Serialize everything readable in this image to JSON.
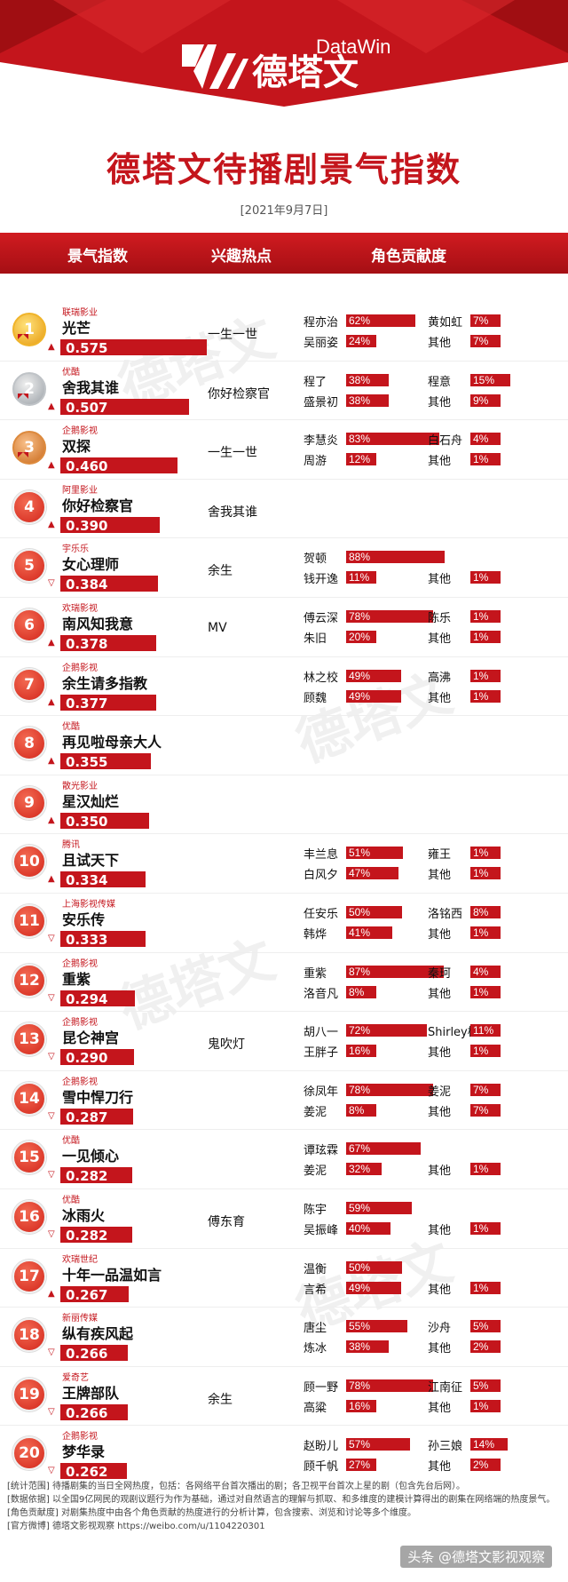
{
  "header": {
    "logo_cn": "德塔文",
    "logo_en": "DataWin",
    "title": "德塔文待播剧景气指数",
    "date": "[2021年9月7日]"
  },
  "columns": {
    "index": "景气指数",
    "hot": "兴趣热点",
    "roles": "角色贡献度"
  },
  "rows": [
    {
      "rank": "1",
      "company": "联瑞影业",
      "title": "光芒",
      "score": "0.575",
      "trend": "up",
      "hot": "一生一世",
      "r1": "程亦治",
      "p1": "62%",
      "r2": "吴丽姿",
      "p2": "24%",
      "r3": "黄如虹",
      "p3": "7%",
      "r4": "其他",
      "p4": "7%"
    },
    {
      "rank": "2",
      "company": "优酷",
      "title": "舍我其谁",
      "score": "0.507",
      "trend": "up",
      "hot": "你好检察官",
      "r1": "程了",
      "p1": "38%",
      "r2": "盛景初",
      "p2": "38%",
      "r3": "程意",
      "p3": "15%",
      "r4": "其他",
      "p4": "9%"
    },
    {
      "rank": "3",
      "company": "企鹅影视",
      "title": "双探",
      "score": "0.460",
      "trend": "up",
      "hot": "一生一世",
      "r1": "李慧炎",
      "p1": "83%",
      "r2": "周游",
      "p2": "12%",
      "r3": "白石舟",
      "p3": "4%",
      "r4": "其他",
      "p4": "1%"
    },
    {
      "rank": "4",
      "company": "阿里影业",
      "title": "你好检察官",
      "score": "0.390",
      "trend": "up",
      "hot": "舍我其谁",
      "r1": "",
      "p1": "",
      "r2": "",
      "p2": "",
      "r3": "",
      "p3": "",
      "r4": "",
      "p4": ""
    },
    {
      "rank": "5",
      "company": "宇乐乐",
      "title": "女心理师",
      "score": "0.384",
      "trend": "down",
      "hot": "余生",
      "r1": "贺顿",
      "p1": "88%",
      "r2": "钱开逸",
      "p2": "11%",
      "r3": "",
      "p3": "",
      "r4": "其他",
      "p4": "1%"
    },
    {
      "rank": "6",
      "company": "欢瑞影视",
      "title": "南风知我意",
      "score": "0.378",
      "trend": "up",
      "hot": "MV",
      "r1": "傅云深",
      "p1": "78%",
      "r2": "朱旧",
      "p2": "20%",
      "r3": "陈乐",
      "p3": "1%",
      "r4": "其他",
      "p4": "1%"
    },
    {
      "rank": "7",
      "company": "企鹅影视",
      "title": "余生请多指教",
      "score": "0.377",
      "trend": "up",
      "hot": "",
      "r1": "林之校",
      "p1": "49%",
      "r2": "顾魏",
      "p2": "49%",
      "r3": "高沸",
      "p3": "1%",
      "r4": "其他",
      "p4": "1%"
    },
    {
      "rank": "8",
      "company": "优酷",
      "title": "再见啦母亲大人",
      "score": "0.355",
      "trend": "up",
      "hot": "",
      "r1": "",
      "p1": "",
      "r2": "",
      "p2": "",
      "r3": "",
      "p3": "",
      "r4": "",
      "p4": ""
    },
    {
      "rank": "9",
      "company": "散光影业",
      "title": "星汉灿烂",
      "score": "0.350",
      "trend": "up",
      "hot": "",
      "r1": "",
      "p1": "",
      "r2": "",
      "p2": "",
      "r3": "",
      "p3": "",
      "r4": "",
      "p4": ""
    },
    {
      "rank": "10",
      "company": "腾讯",
      "title": "且试天下",
      "score": "0.334",
      "trend": "up",
      "hot": "",
      "r1": "丰兰息",
      "p1": "51%",
      "r2": "白风夕",
      "p2": "47%",
      "r3": "雍王",
      "p3": "1%",
      "r4": "其他",
      "p4": "1%"
    },
    {
      "rank": "11",
      "company": "上海影视传媒",
      "title": "安乐传",
      "score": "0.333",
      "trend": "down",
      "hot": "",
      "r1": "任安乐",
      "p1": "50%",
      "r2": "韩烨",
      "p2": "41%",
      "r3": "洛铭西",
      "p3": "8%",
      "r4": "其他",
      "p4": "1%"
    },
    {
      "rank": "12",
      "company": "企鹅影视",
      "title": "重紫",
      "score": "0.294",
      "trend": "down",
      "hot": "",
      "r1": "重紫",
      "p1": "87%",
      "r2": "洛音凡",
      "p2": "8%",
      "r3": "秦珂",
      "p3": "4%",
      "r4": "其他",
      "p4": "1%"
    },
    {
      "rank": "13",
      "company": "企鹅影视",
      "title": "昆仑神宫",
      "score": "0.290",
      "trend": "down",
      "hot": "鬼吹灯",
      "r1": "胡八一",
      "p1": "72%",
      "r2": "王胖子",
      "p2": "16%",
      "r3": "Shirley杨",
      "p3": "11%",
      "r4": "其他",
      "p4": "1%"
    },
    {
      "rank": "14",
      "company": "企鹅影视",
      "title": "雪中悍刀行",
      "score": "0.287",
      "trend": "down",
      "hot": "",
      "r1": "徐凤年",
      "p1": "78%",
      "r2": "姜泥",
      "p2": "8%",
      "r3": "姜泥",
      "p3": "7%",
      "r4": "其他",
      "p4": "7%"
    },
    {
      "rank": "15",
      "company": "优酷",
      "title": "一见倾心",
      "score": "0.282",
      "trend": "down",
      "hot": "",
      "r1": "谭玹霖",
      "p1": "67%",
      "r2": "姜泥",
      "p2": "32%",
      "r3": "",
      "p3": "",
      "r4": "其他",
      "p4": "1%"
    },
    {
      "rank": "16",
      "company": "优酷",
      "title": "冰雨火",
      "score": "0.282",
      "trend": "down",
      "hot": "傅东育",
      "r1": "陈宇",
      "p1": "59%",
      "r2": "吴振峰",
      "p2": "40%",
      "r3": "",
      "p3": "",
      "r4": "其他",
      "p4": "1%"
    },
    {
      "rank": "17",
      "company": "欢瑞世纪",
      "title": "十年一品温如言",
      "score": "0.267",
      "trend": "up",
      "hot": "",
      "r1": "温衡",
      "p1": "50%",
      "r2": "言希",
      "p2": "49%",
      "r3": "",
      "p3": "",
      "r4": "其他",
      "p4": "1%"
    },
    {
      "rank": "18",
      "company": "新丽传媒",
      "title": "纵有疾风起",
      "score": "0.266",
      "trend": "down",
      "hot": "",
      "r1": "唐尘",
      "p1": "55%",
      "r2": "炼冰",
      "p2": "38%",
      "r3": "沙舟",
      "p3": "5%",
      "r4": "其他",
      "p4": "2%"
    },
    {
      "rank": "19",
      "company": "爱奇艺",
      "title": "王牌部队",
      "score": "0.266",
      "trend": "down",
      "hot": "余生",
      "r1": "顾一野",
      "p1": "78%",
      "r2": "高粱",
      "p2": "16%",
      "r3": "江南征",
      "p3": "5%",
      "r4": "其他",
      "p4": "1%"
    },
    {
      "rank": "20",
      "company": "企鹅影视",
      "title": "梦华录",
      "score": "0.262",
      "trend": "down",
      "hot": "",
      "r1": "赵盼儿",
      "p1": "57%",
      "r2": "顾千帆",
      "p2": "27%",
      "r3": "孙三娘",
      "p3": "14%",
      "r4": "其他",
      "p4": "2%"
    }
  ],
  "footer": {
    "line1": "[统计范围] 待播剧集的当日全网热度，包括：各网络平台首次播出的剧；各卫视平台首次上星的剧（包含先台后网）。",
    "line2": "[数据依据] 以全国9亿网民的观剧议题行为作为基础，通过对自然语言的理解与抓取、和多维度的建模计算得出的剧集在网络端的热度景气。",
    "line3": "[角色贡献度] 对剧集热度中由各个角色贡献的热度进行的分析计算，包含搜索、浏览和讨论等多个维度。",
    "line4": "[官方微博] 德塔文影视观察 https://weibo.com/u/1104220301",
    "source": "头条 @德塔文影视观察"
  },
  "colors": {
    "accent": "#c4151c"
  }
}
